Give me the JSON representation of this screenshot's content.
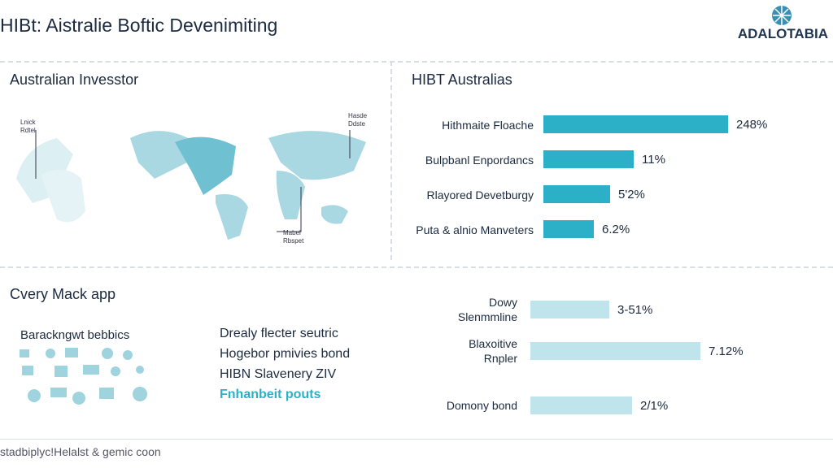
{
  "header": {
    "title": "HIBt: Aistralie Boftic Devenimiting",
    "logo": "ADALOTABIA"
  },
  "map_panel": {
    "title": "Australian Invesstor",
    "callouts": [
      [
        "Lnick",
        "Rdtel"
      ],
      [
        "Hasde",
        "Ddste"
      ],
      [
        "Mabel",
        "Rbspet"
      ]
    ]
  },
  "top_bars": {
    "title": "HIBT Australias",
    "rows": [
      {
        "label": "Hithmaite Floache",
        "value": "248%"
      },
      {
        "label": "Bulpbanl Enpordancs",
        "value": "11%"
      },
      {
        "label": "Rlayored Devetburgy",
        "value": "5'2%"
      },
      {
        "label": "Puta & alnio Manveters",
        "value": "6.2%"
      }
    ]
  },
  "app_panel": {
    "title": "Cvery Mack app",
    "subtitle": "Barackngwt bebbics",
    "items": [
      "Drealy flecter seutric",
      "Hogebor pmivies bond",
      "HIBN Slavenery ZIV"
    ],
    "highlight": "Fnhanbeit pouts"
  },
  "bottom_bars": {
    "rows": [
      {
        "label": [
          "Dowy",
          "Slenmmline"
        ],
        "value": "3-51%"
      },
      {
        "label": [
          "Blaxoitive",
          "Rnpler"
        ],
        "value": "7.12%"
      },
      {
        "label": [
          "Domony bond"
        ],
        "value": "2/1%"
      }
    ]
  },
  "footer": {
    "text": "stadbiplyc!Helalst & gemic coon"
  }
}
